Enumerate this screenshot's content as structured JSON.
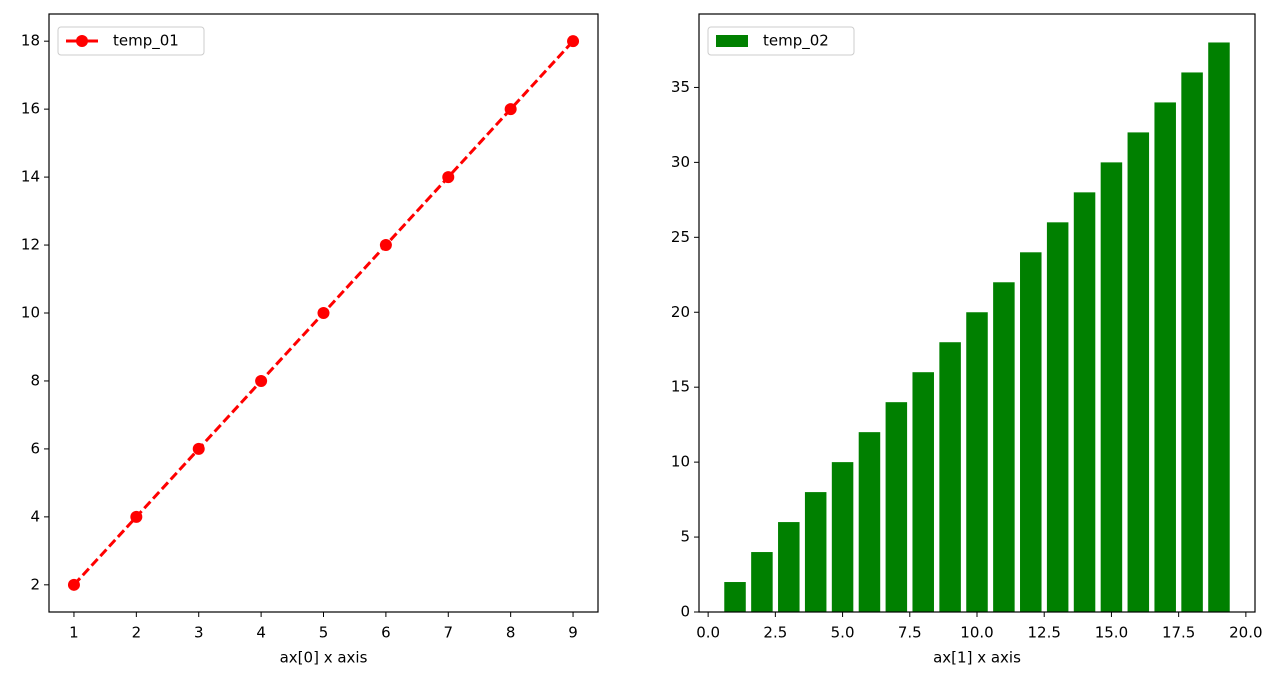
{
  "chart_data": [
    {
      "type": "line",
      "xlabel": "ax[0] x axis",
      "x": [
        1,
        2,
        3,
        4,
        5,
        6,
        7,
        8,
        9
      ],
      "series": [
        {
          "name": "temp_01",
          "color": "#ff0000",
          "linestyle": "dashed",
          "marker": "circle",
          "values": [
            2,
            4,
            6,
            8,
            10,
            12,
            14,
            16,
            18
          ]
        }
      ],
      "xlim": [
        0.6,
        9.4
      ],
      "xticks": [
        1,
        2,
        3,
        4,
        5,
        6,
        7,
        8,
        9
      ],
      "ylim": [
        1.2,
        18.8
      ],
      "yticks": [
        2,
        4,
        6,
        8,
        10,
        12,
        14,
        16,
        18
      ],
      "legend": "upper left",
      "grid": false
    },
    {
      "type": "bar",
      "xlabel": "ax[1] x axis",
      "x": [
        1,
        2,
        3,
        4,
        5,
        6,
        7,
        8,
        9,
        10,
        11,
        12,
        13,
        14,
        15,
        16,
        17,
        18,
        19
      ],
      "bar_width": 0.8,
      "series": [
        {
          "name": "temp_02",
          "color": "#008000",
          "values": [
            2,
            4,
            6,
            8,
            10,
            12,
            14,
            16,
            18,
            20,
            22,
            24,
            26,
            28,
            30,
            32,
            34,
            36,
            38
          ]
        }
      ],
      "xlim": [
        -0.34,
        20.34
      ],
      "xticks": [
        {
          "value": 0,
          "label": "0.0"
        },
        2.5,
        {
          "value": 5,
          "label": "5.0"
        },
        7.5,
        {
          "value": 10,
          "label": "10.0"
        },
        12.5,
        {
          "value": 15,
          "label": "15.0"
        },
        17.5,
        {
          "value": 20,
          "label": "20.0"
        }
      ],
      "ylim": [
        0,
        39.9
      ],
      "yticks": [
        0,
        5,
        10,
        15,
        20,
        25,
        30,
        35
      ],
      "legend": "upper left",
      "grid": false
    }
  ]
}
